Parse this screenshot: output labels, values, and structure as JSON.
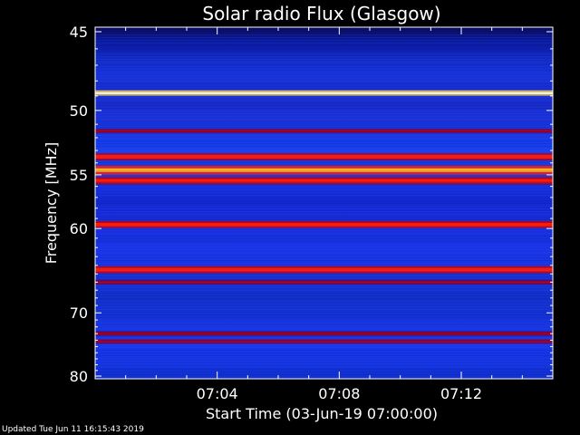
{
  "footer": {
    "updated": "Updated Tue Jun 11 16:15:43 2019"
  },
  "chart_data": {
    "type": "heatmap",
    "title": "Solar radio Flux (Glasgow)",
    "xlabel": "Start Time (03-Jun-19 07:00:00)",
    "ylabel": "Frequency [MHz]",
    "x_ticks": [
      "07:04",
      "07:08",
      "07:12"
    ],
    "x_tick_minutes": [
      4,
      8,
      12
    ],
    "xlim_minutes": [
      0,
      15
    ],
    "y_ticks": [
      45,
      50,
      55,
      60,
      70,
      80
    ],
    "ylim": [
      45,
      80
    ],
    "y_scale": "reciprocal",
    "colormap": "blue-red-yellow-white",
    "emission_bands": [
      {
        "freq_mhz": 48.8,
        "level": "white"
      },
      {
        "freq_mhz": 51.5,
        "level": "dark-red"
      },
      {
        "freq_mhz": 53.5,
        "level": "red"
      },
      {
        "freq_mhz": 54.6,
        "level": "orange"
      },
      {
        "freq_mhz": 55.5,
        "level": "red"
      },
      {
        "freq_mhz": 59.6,
        "level": "red"
      },
      {
        "freq_mhz": 64.5,
        "level": "red"
      },
      {
        "freq_mhz": 66.0,
        "level": "dark-red"
      },
      {
        "freq_mhz": 73.0,
        "level": "dark-red"
      },
      {
        "freq_mhz": 74.2,
        "level": "dark-red"
      }
    ]
  }
}
